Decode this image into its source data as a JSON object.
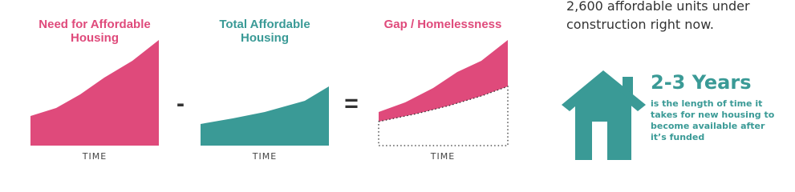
{
  "panels": [
    {
      "title_lines": [
        "Need for Affordable",
        "Housing"
      ],
      "axis_label": "TIME"
    },
    {
      "title_lines": [
        "Total Affordable",
        "Housing"
      ],
      "axis_label": "TIME"
    },
    {
      "title_lines": [
        "Gap / Homelessness"
      ],
      "axis_label": "TIME"
    }
  ],
  "operators": [
    "-",
    "="
  ],
  "construction_note_lines": [
    "2,600 affordable units under",
    "construction right now."
  ],
  "timeline": {
    "headline": "2-3 Years",
    "description_lines": [
      "is the length of time it",
      "takes for new housing to",
      "become available after",
      "it’s funded"
    ]
  }
}
